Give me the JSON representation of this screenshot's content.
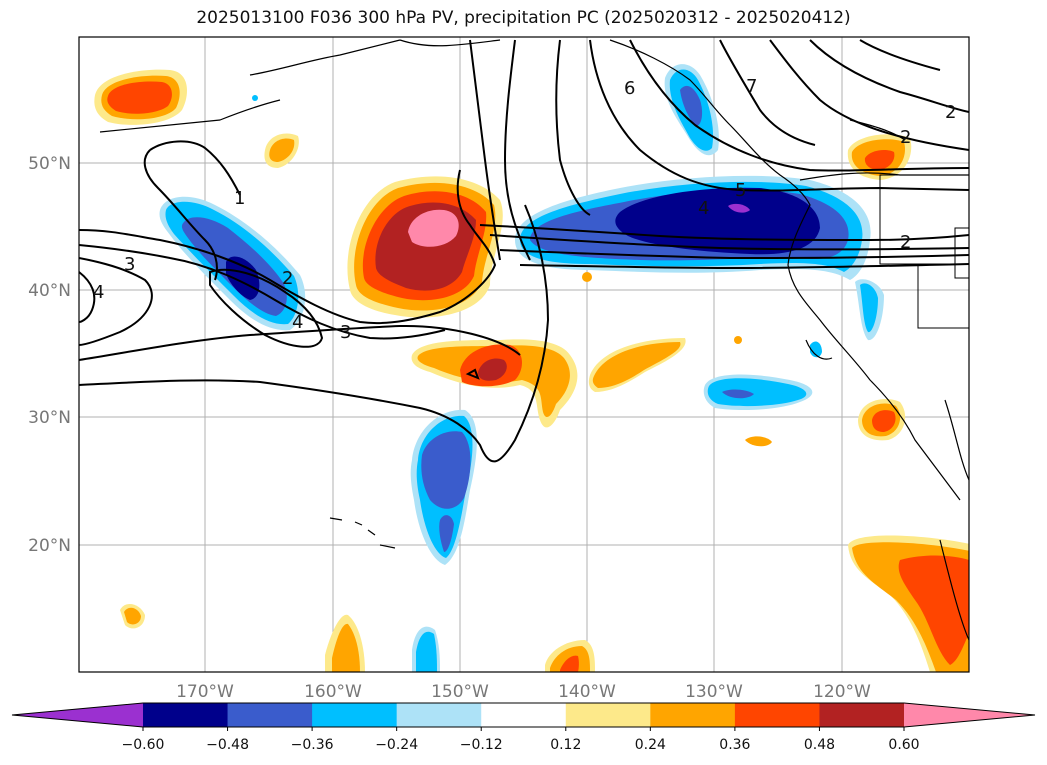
{
  "title": "2025013100 F036 300 hPa PV, precipitation PC (2025020312 - 2025020412)",
  "map": {
    "lat_labels": [
      "50°N",
      "40°N",
      "30°N",
      "20°N"
    ],
    "lon_labels": [
      "170°W",
      "160°W",
      "150°W",
      "140°W",
      "130°W",
      "120°W"
    ],
    "contour_labels": [
      "1",
      "2",
      "3",
      "4",
      "3",
      "4",
      "2",
      "4",
      "6",
      "7",
      "2",
      "5",
      "2"
    ]
  },
  "colorbar": {
    "tick_labels": [
      "−0.60",
      "−0.48",
      "−0.36",
      "−0.24",
      "−0.12",
      "0.12",
      "0.24",
      "0.36",
      "0.48",
      "0.60"
    ],
    "colors": [
      "#9b30d0",
      "#00008b",
      "#3a5ccc",
      "#00bfff",
      "#ade2f7",
      "#ffffff",
      "#fde98a",
      "#ffa500",
      "#ff4500",
      "#b22222",
      "#ff88aa"
    ]
  }
}
